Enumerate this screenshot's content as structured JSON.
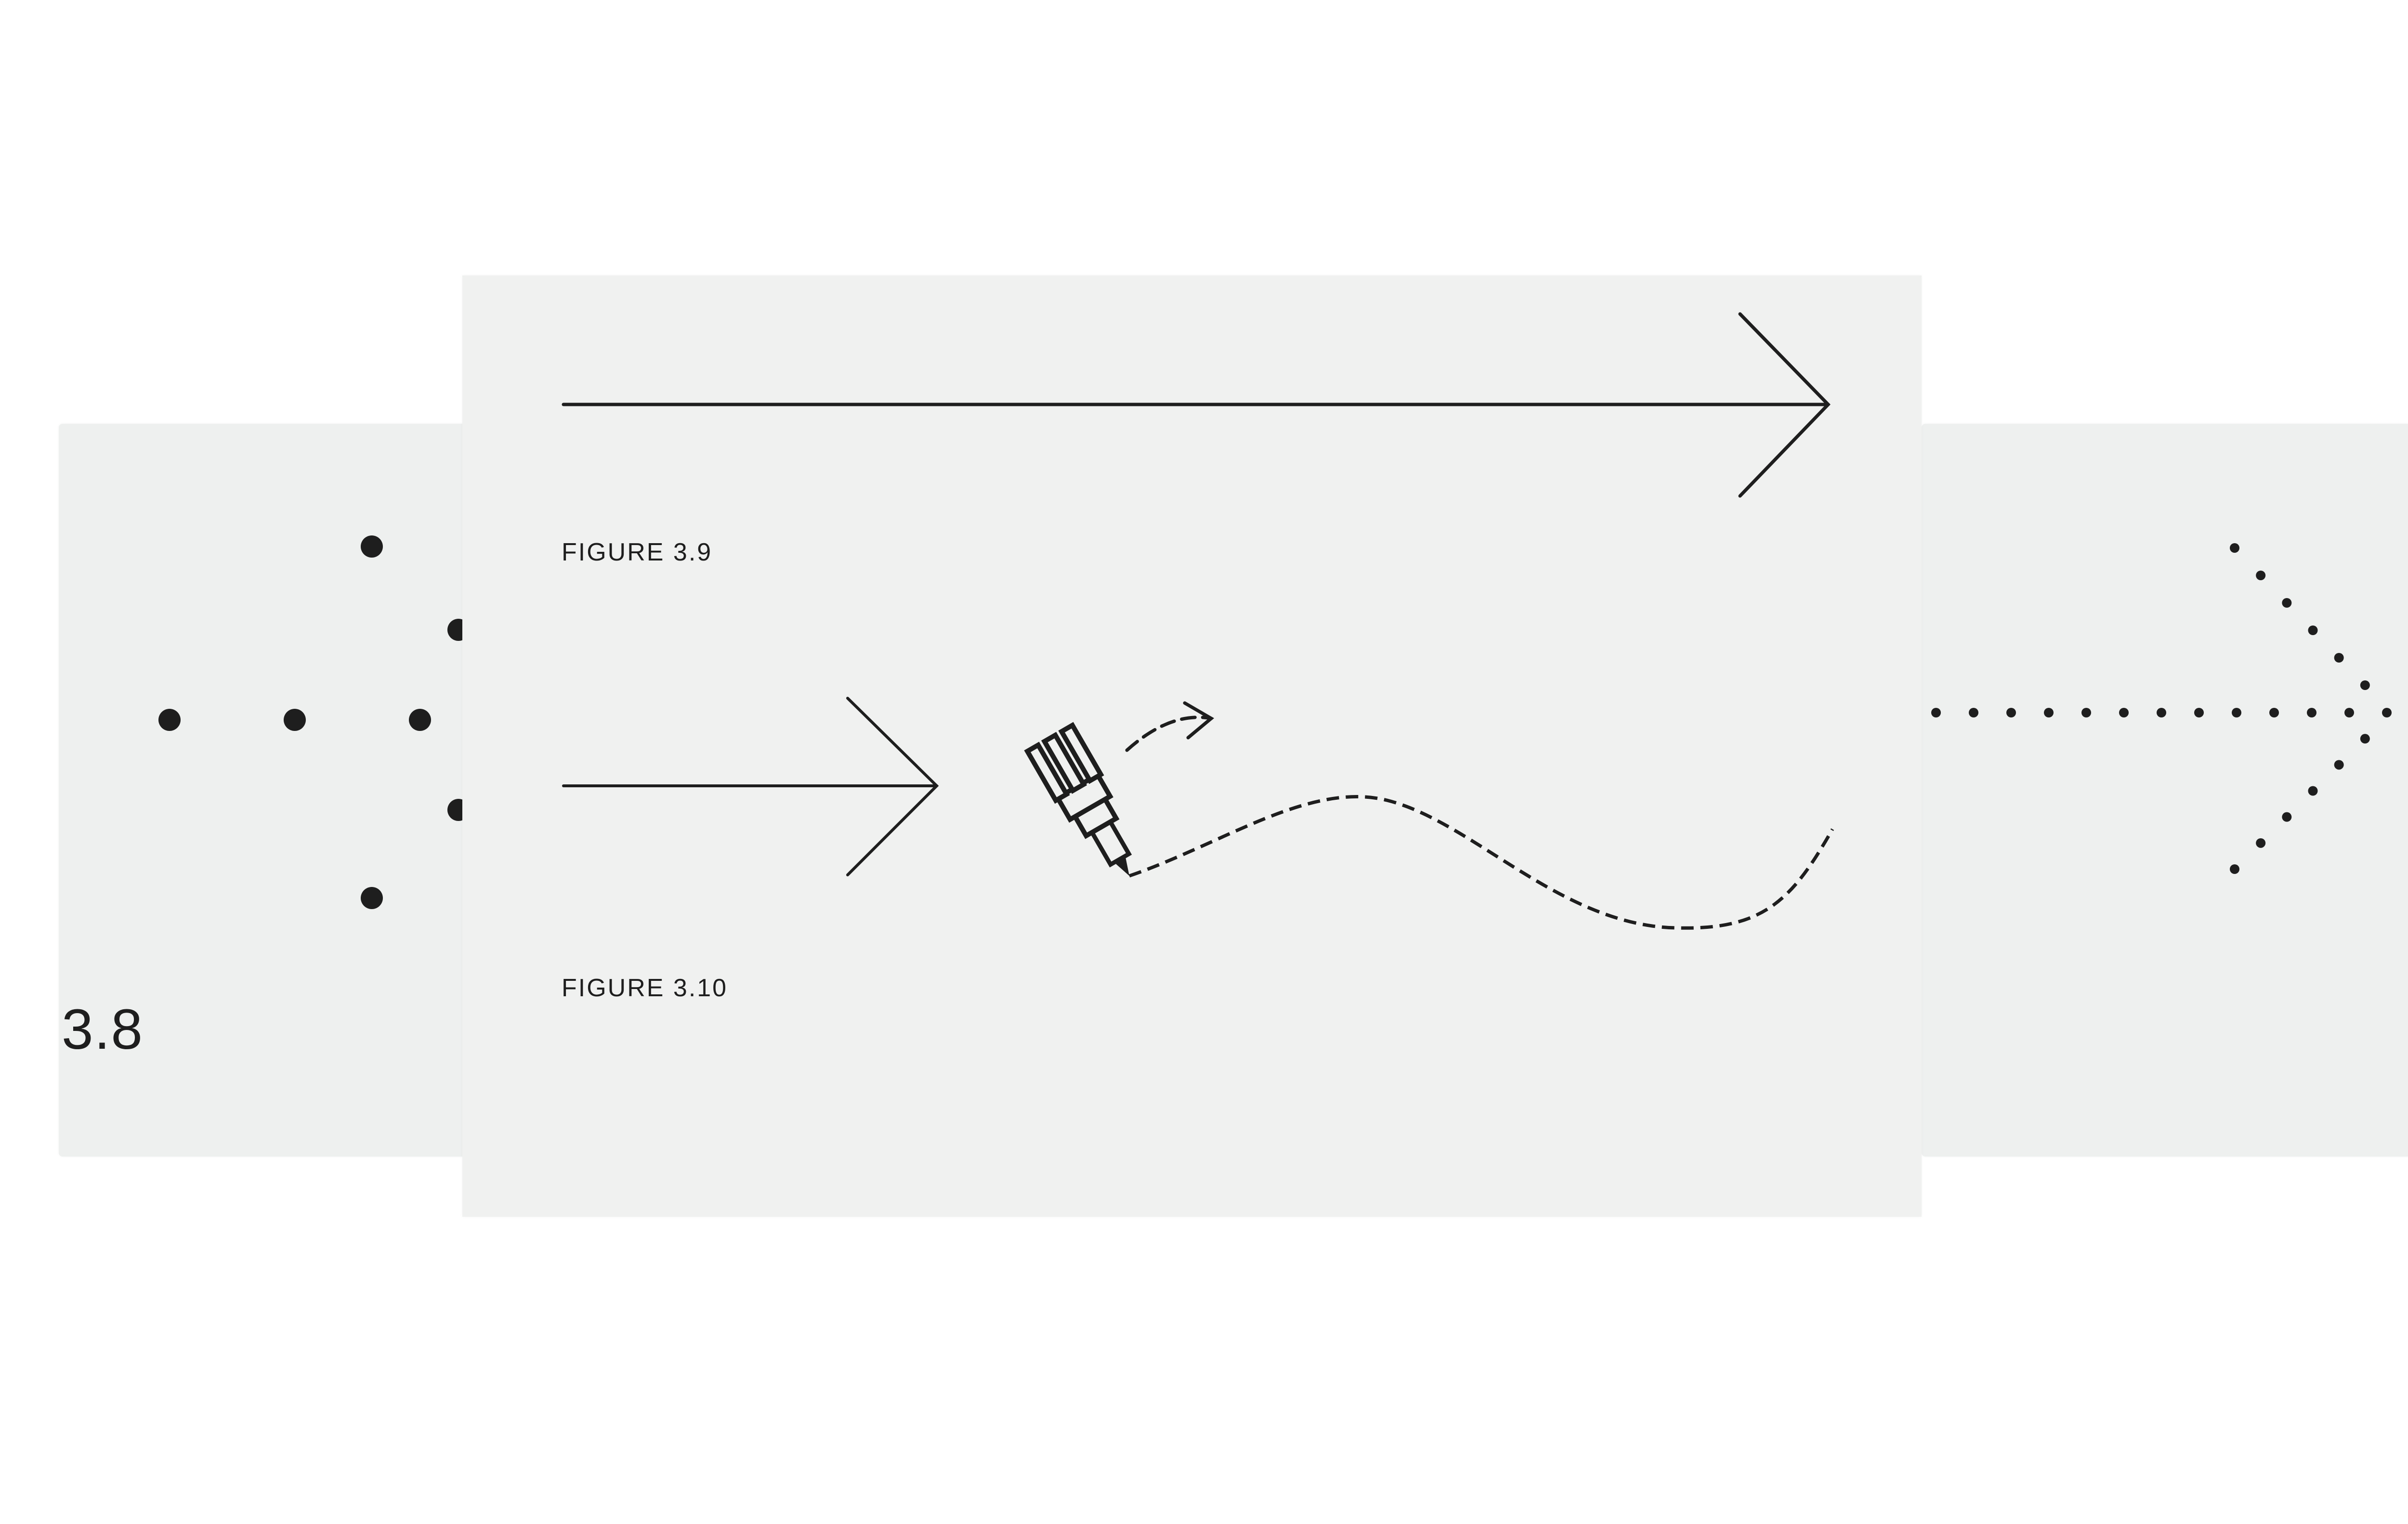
{
  "figures": {
    "fig_3_8": {
      "label": "3.8"
    },
    "fig_3_9": {
      "caption": "FIGURE 3.9"
    },
    "fig_3_10": {
      "caption": "FIGURE 3.10"
    }
  },
  "icons": [
    "pen-icon",
    "dashed-arrow-icon"
  ],
  "colors": {
    "ink": "#1e1e1e",
    "paper": "#eef0ef",
    "background": "#ffffff"
  }
}
